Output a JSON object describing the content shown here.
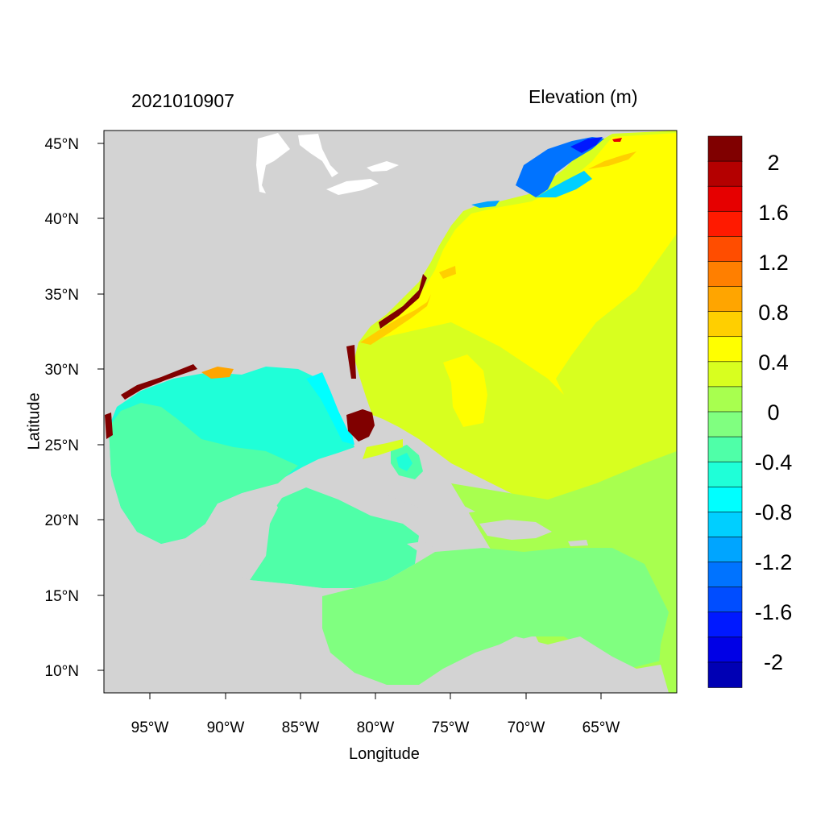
{
  "header": {
    "date_label": "2021010907",
    "variable_label": "Elevation (m)"
  },
  "axes": {
    "x_title": "Longitude",
    "y_title": "Latitude",
    "x_ticks": [
      "95°W",
      "90°W",
      "85°W",
      "80°W",
      "75°W",
      "70°W",
      "65°W"
    ],
    "y_ticks": [
      "45°N",
      "40°N",
      "35°N",
      "30°N",
      "25°N",
      "20°N",
      "15°N",
      "10°N"
    ]
  },
  "map": {
    "lon_range": [
      -98,
      -60
    ],
    "lat_range": [
      8.5,
      46
    ],
    "land_color": "#d3d3d3",
    "water_color": "#ffffff"
  },
  "colorbar": {
    "labels": [
      "2",
      "1.6",
      "1.2",
      "0.8",
      "0.4",
      "0",
      "-0.4",
      "-0.8",
      "-1.2",
      "-1.6",
      "-2"
    ],
    "colors": [
      "#800000",
      "#b40000",
      "#e60000",
      "#ff1a00",
      "#ff4d00",
      "#ff7f00",
      "#ffa500",
      "#ffcf00",
      "#ffff00",
      "#d8ff1f",
      "#a8ff4f",
      "#80ff80",
      "#4fffa8",
      "#1fffd8",
      "#00ffff",
      "#00cfff",
      "#00a5ff",
      "#0073ff",
      "#004dff",
      "#0019ff",
      "#0000e6",
      "#0000b4"
    ]
  }
}
